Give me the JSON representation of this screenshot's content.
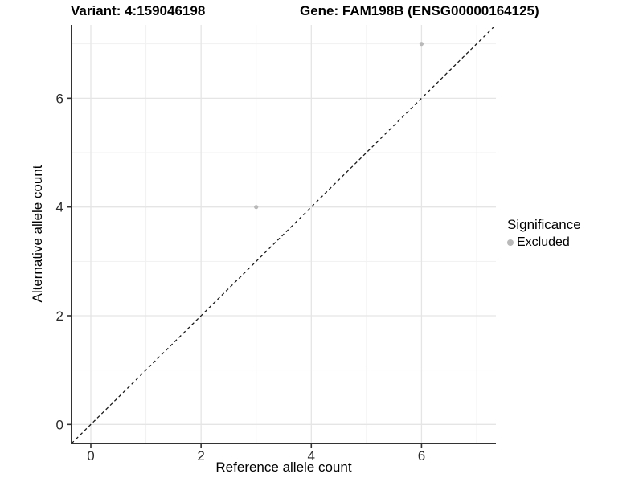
{
  "header": {
    "variant_title": "Variant: 4:159046198",
    "gene_title": "Gene: FAM198B (ENSG00000164125)"
  },
  "chart_data": {
    "type": "scatter",
    "xlabel": "Reference allele count",
    "ylabel": "Alternative allele count",
    "xlim": [
      -0.35,
      7.35
    ],
    "ylim": [
      -0.35,
      7.35
    ],
    "x_major_ticks": [
      0,
      2,
      4,
      6
    ],
    "y_major_ticks": [
      0,
      2,
      4,
      6
    ],
    "x_minor_ticks": [
      1,
      3,
      5,
      7
    ],
    "y_minor_ticks": [
      1,
      3,
      5,
      7
    ],
    "grid": "on",
    "reference_line": {
      "type": "identity",
      "style": "dashed",
      "color": "#1a1a1a"
    },
    "series": [
      {
        "name": "Excluded",
        "color": "#b9b9b9",
        "points": [
          {
            "x": 3,
            "y": 4
          },
          {
            "x": 6,
            "y": 7
          }
        ]
      }
    ],
    "legend": {
      "title": "Significance",
      "position": "right",
      "items": [
        {
          "label": "Excluded",
          "color": "#b9b9b9"
        }
      ]
    }
  },
  "colors": {
    "background": "#ffffff",
    "axis_line": "#333333",
    "tick_label": "#2b2b2b",
    "grid_major": "#e5e5e5",
    "grid_minor": "#f1f1f1"
  }
}
